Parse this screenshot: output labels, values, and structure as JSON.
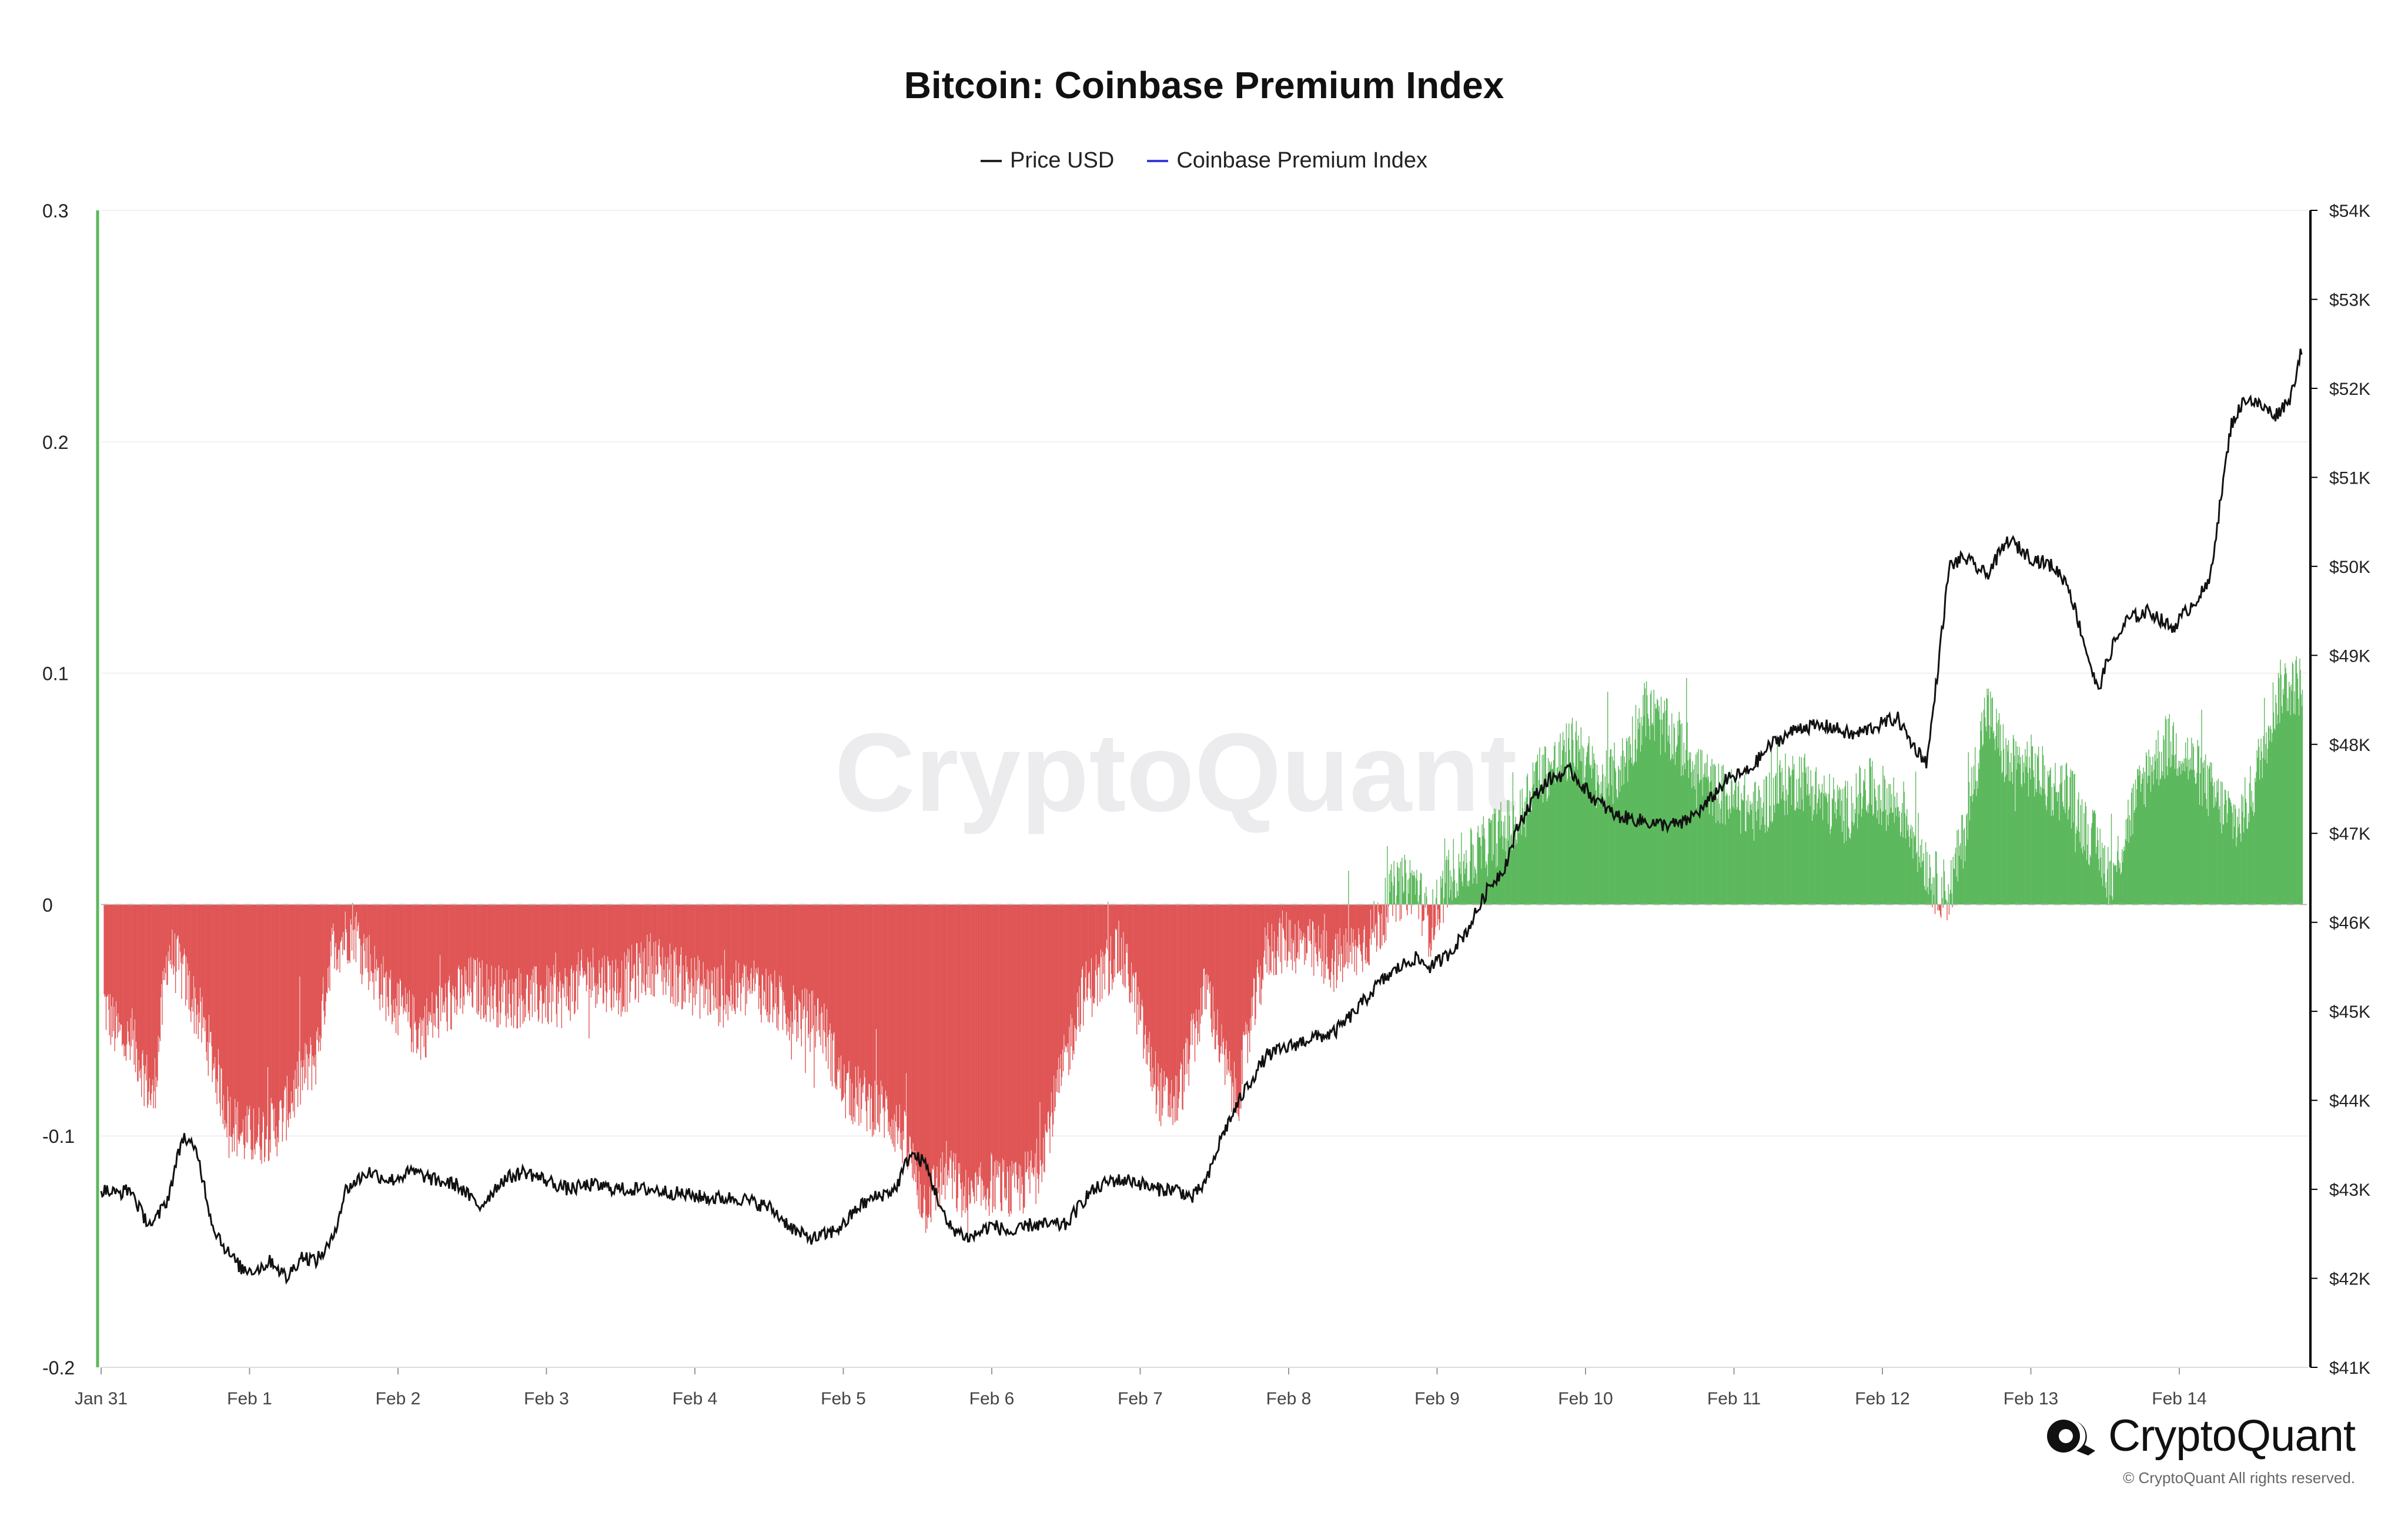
{
  "chart_data": {
    "type": "line",
    "title": "Bitcoin: Coinbase Premium Index",
    "legend": [
      {
        "name": "Price USD",
        "color": "#222222"
      },
      {
        "name": "Coinbase Premium Index",
        "color": "#3b3bd6"
      }
    ],
    "watermark": "CryptoQuant",
    "x_tick_labels": [
      "Jan 31",
      "Feb 1",
      "Feb 2",
      "Feb 3",
      "Feb 4",
      "Feb 5",
      "Feb 6",
      "Feb 7",
      "Feb 8",
      "Feb 9",
      "Feb 10",
      "Feb 11",
      "Feb 12",
      "Feb 13",
      "Feb 14"
    ],
    "x_range_days": [
      0,
      14.83
    ],
    "left_axis": {
      "range": [
        -0.2,
        0.3
      ],
      "ticks": [
        0.3,
        0.2,
        0.1,
        0,
        -0.1,
        -0.2
      ],
      "tick_labels": [
        "0.3",
        "0.2",
        "0.1",
        "0",
        "-0.1",
        "-0.2"
      ]
    },
    "right_axis": {
      "range": [
        41000,
        54000
      ],
      "ticks": [
        54000,
        53000,
        52000,
        51000,
        50000,
        49000,
        48000,
        47000,
        46000,
        45000,
        44000,
        43000,
        42000,
        41000
      ],
      "tick_labels": [
        "$54K",
        "$53K",
        "$52K",
        "$51K",
        "$50K",
        "$49K",
        "$48K",
        "$47K",
        "$46K",
        "$45K",
        "$44K",
        "$43K",
        "$42K",
        "$41K"
      ]
    },
    "colors": {
      "positive": "#5cb85c",
      "negative": "#e05555",
      "price": "#111111",
      "grid": "#f0f0f0",
      "zero": "#b5b5b5",
      "left_axis": "#5cb85c",
      "right_axis": "#000000"
    },
    "series": [
      {
        "name": "Coinbase Premium Index",
        "axis": "left",
        "x_days": [
          0,
          0.1,
          0.25,
          0.35,
          0.45,
          0.55,
          0.7,
          0.85,
          0.95,
          1.05,
          1.2,
          1.35,
          1.45,
          1.55,
          1.7,
          1.85,
          2.0,
          2.15,
          2.3,
          2.5,
          2.7,
          2.9,
          3.1,
          3.3,
          3.5,
          3.7,
          3.85,
          4.0,
          4.2,
          4.4,
          4.6,
          4.75,
          4.85,
          5.0,
          5.15,
          5.3,
          5.4,
          5.55,
          5.7,
          5.85,
          6.0,
          6.15,
          6.3,
          6.45,
          6.6,
          6.75,
          6.85,
          6.95,
          7.05,
          7.15,
          7.25,
          7.35,
          7.45,
          7.55,
          7.65,
          7.75,
          7.85,
          8.0,
          8.15,
          8.3,
          8.45,
          8.6,
          8.7,
          8.85,
          8.95,
          9.1,
          9.25,
          9.4,
          9.55,
          9.65,
          9.8,
          9.95,
          10.1,
          10.25,
          10.4,
          10.55,
          10.7,
          10.85,
          11.0,
          11.15,
          11.3,
          11.45,
          11.6,
          11.75,
          11.9,
          12.05,
          12.15,
          12.25,
          12.35,
          12.45,
          12.55,
          12.7,
          12.85,
          13.0,
          13.15,
          13.25,
          13.35,
          13.45,
          13.55,
          13.65,
          13.8,
          13.95,
          14.1,
          14.25,
          14.4,
          14.5,
          14.6,
          14.7,
          14.83
        ],
        "values": [
          -0.04,
          -0.055,
          -0.065,
          -0.085,
          -0.02,
          -0.03,
          -0.055,
          -0.09,
          -0.1,
          -0.1,
          -0.095,
          -0.075,
          -0.065,
          -0.02,
          -0.01,
          -0.03,
          -0.045,
          -0.055,
          -0.045,
          -0.035,
          -0.04,
          -0.04,
          -0.04,
          -0.03,
          -0.035,
          -0.025,
          -0.03,
          -0.035,
          -0.04,
          -0.035,
          -0.045,
          -0.05,
          -0.05,
          -0.08,
          -0.085,
          -0.09,
          -0.1,
          -0.13,
          -0.115,
          -0.13,
          -0.12,
          -0.125,
          -0.115,
          -0.08,
          -0.04,
          -0.03,
          -0.02,
          -0.035,
          -0.065,
          -0.085,
          -0.085,
          -0.06,
          -0.035,
          -0.065,
          -0.085,
          -0.05,
          -0.02,
          -0.015,
          -0.02,
          -0.025,
          -0.02,
          -0.01,
          0.005,
          0.01,
          -0.01,
          0.015,
          0.02,
          0.03,
          0.035,
          0.055,
          0.06,
          0.07,
          0.05,
          0.06,
          0.085,
          0.075,
          0.065,
          0.05,
          0.045,
          0.04,
          0.05,
          0.055,
          0.045,
          0.04,
          0.05,
          0.045,
          0.04,
          0.025,
          0.01,
          0.005,
          0.03,
          0.085,
          0.06,
          0.06,
          0.05,
          0.05,
          0.035,
          0.025,
          0.01,
          0.035,
          0.06,
          0.07,
          0.06,
          0.045,
          0.035,
          0.05,
          0.08,
          0.095,
          0.095
        ]
      },
      {
        "name": "Price USD",
        "axis": "right",
        "x_days": [
          0,
          0.1,
          0.2,
          0.28,
          0.35,
          0.45,
          0.55,
          0.65,
          0.75,
          0.85,
          0.95,
          1.05,
          1.15,
          1.25,
          1.35,
          1.45,
          1.55,
          1.65,
          1.8,
          1.95,
          2.1,
          2.25,
          2.4,
          2.55,
          2.7,
          2.85,
          3.0,
          3.15,
          3.3,
          3.5,
          3.7,
          3.9,
          4.1,
          4.3,
          4.5,
          4.7,
          4.8,
          4.9,
          5.0,
          5.1,
          5.2,
          5.35,
          5.45,
          5.55,
          5.7,
          5.85,
          6.0,
          6.15,
          6.25,
          6.35,
          6.5,
          6.65,
          6.8,
          6.95,
          7.1,
          7.25,
          7.35,
          7.45,
          7.55,
          7.7,
          7.85,
          8.0,
          8.15,
          8.3,
          8.45,
          8.6,
          8.75,
          8.85,
          8.95,
          9.05,
          9.2,
          9.35,
          9.45,
          9.55,
          9.65,
          9.75,
          9.9,
          10.05,
          10.2,
          10.35,
          10.5,
          10.65,
          10.8,
          10.95,
          11.1,
          11.25,
          11.45,
          11.65,
          11.8,
          11.95,
          12.1,
          12.2,
          12.3,
          12.35,
          12.45,
          12.55,
          12.7,
          12.85,
          13.0,
          13.15,
          13.25,
          13.35,
          13.45,
          13.55,
          13.65,
          13.8,
          13.95,
          14.1,
          14.2,
          14.3,
          14.35,
          14.45,
          14.55,
          14.65,
          14.75,
          14.83
        ],
        "values": [
          43.0,
          42.95,
          43.0,
          42.7,
          42.6,
          42.9,
          43.6,
          43.4,
          42.6,
          42.3,
          42.1,
          42.1,
          42.2,
          42.0,
          42.25,
          42.2,
          42.4,
          43.0,
          43.2,
          43.1,
          43.2,
          43.1,
          43.05,
          42.8,
          43.1,
          43.2,
          43.1,
          43.0,
          43.05,
          43.0,
          43.0,
          42.95,
          42.9,
          42.9,
          42.8,
          42.5,
          42.45,
          42.5,
          42.6,
          42.8,
          42.9,
          43.0,
          43.4,
          43.3,
          42.6,
          42.45,
          42.6,
          42.5,
          42.6,
          42.6,
          42.6,
          42.95,
          43.1,
          43.1,
          43.0,
          43.0,
          42.9,
          43.1,
          43.6,
          44.1,
          44.5,
          44.6,
          44.7,
          44.75,
          45.0,
          45.3,
          45.5,
          45.6,
          45.5,
          45.6,
          45.9,
          46.4,
          46.6,
          47.1,
          47.4,
          47.6,
          47.7,
          47.4,
          47.2,
          47.15,
          47.1,
          47.1,
          47.3,
          47.6,
          47.7,
          48.0,
          48.2,
          48.2,
          48.1,
          48.2,
          48.3,
          48.0,
          47.8,
          48.5,
          50.0,
          50.1,
          49.9,
          50.3,
          50.1,
          50.0,
          49.8,
          49.2,
          48.6,
          49.1,
          49.4,
          49.5,
          49.3,
          49.6,
          49.8,
          51.0,
          51.6,
          51.9,
          51.8,
          51.7,
          51.9,
          52.5
        ]
      }
    ]
  },
  "footer": {
    "brand": "CryptoQuant",
    "copyright": "© CryptoQuant All rights reserved."
  }
}
